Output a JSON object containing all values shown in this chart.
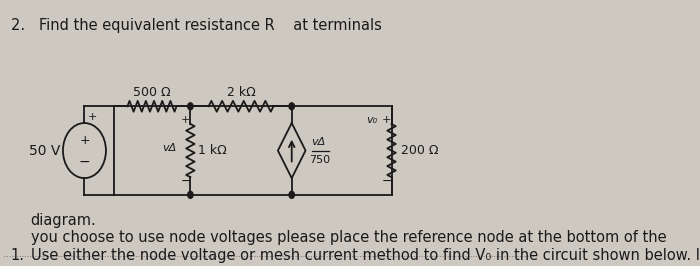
{
  "bg_color": "#cdc8c0",
  "text_color": "#1a1a1a",
  "line1": "Use either the node voltage or mesh current method to find V₀ in the circuit shown below. If",
  "line2": "you choose to use node voltages please place the reference node at the bottom of the",
  "line3": "diagram.",
  "item1": "1.",
  "item2": "2.   Find the equivalent resistance R    at terminals",
  "r500": "500 Ω",
  "r2k": "2 kΩ",
  "r1k": "1 kΩ",
  "r200": "200 Ω",
  "v50": "50 V",
  "vdelta": "vΔ",
  "v0label": "v₀",
  "denom": "750",
  "fs_main": 10.5,
  "fs_circuit": 9.0,
  "lw": 1.3
}
